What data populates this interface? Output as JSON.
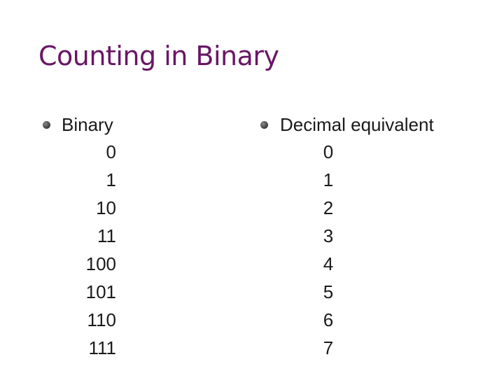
{
  "slide": {
    "title": "Counting in Binary",
    "title_color": "#6a1566"
  },
  "left_column": {
    "heading": "Binary",
    "values": [
      "0",
      "1",
      "10",
      "11",
      "100",
      "101",
      "110",
      "111"
    ]
  },
  "right_column": {
    "heading": "Decimal equivalent",
    "values": [
      "0",
      "1",
      "2",
      "3",
      "4",
      "5",
      "6",
      "7"
    ]
  }
}
